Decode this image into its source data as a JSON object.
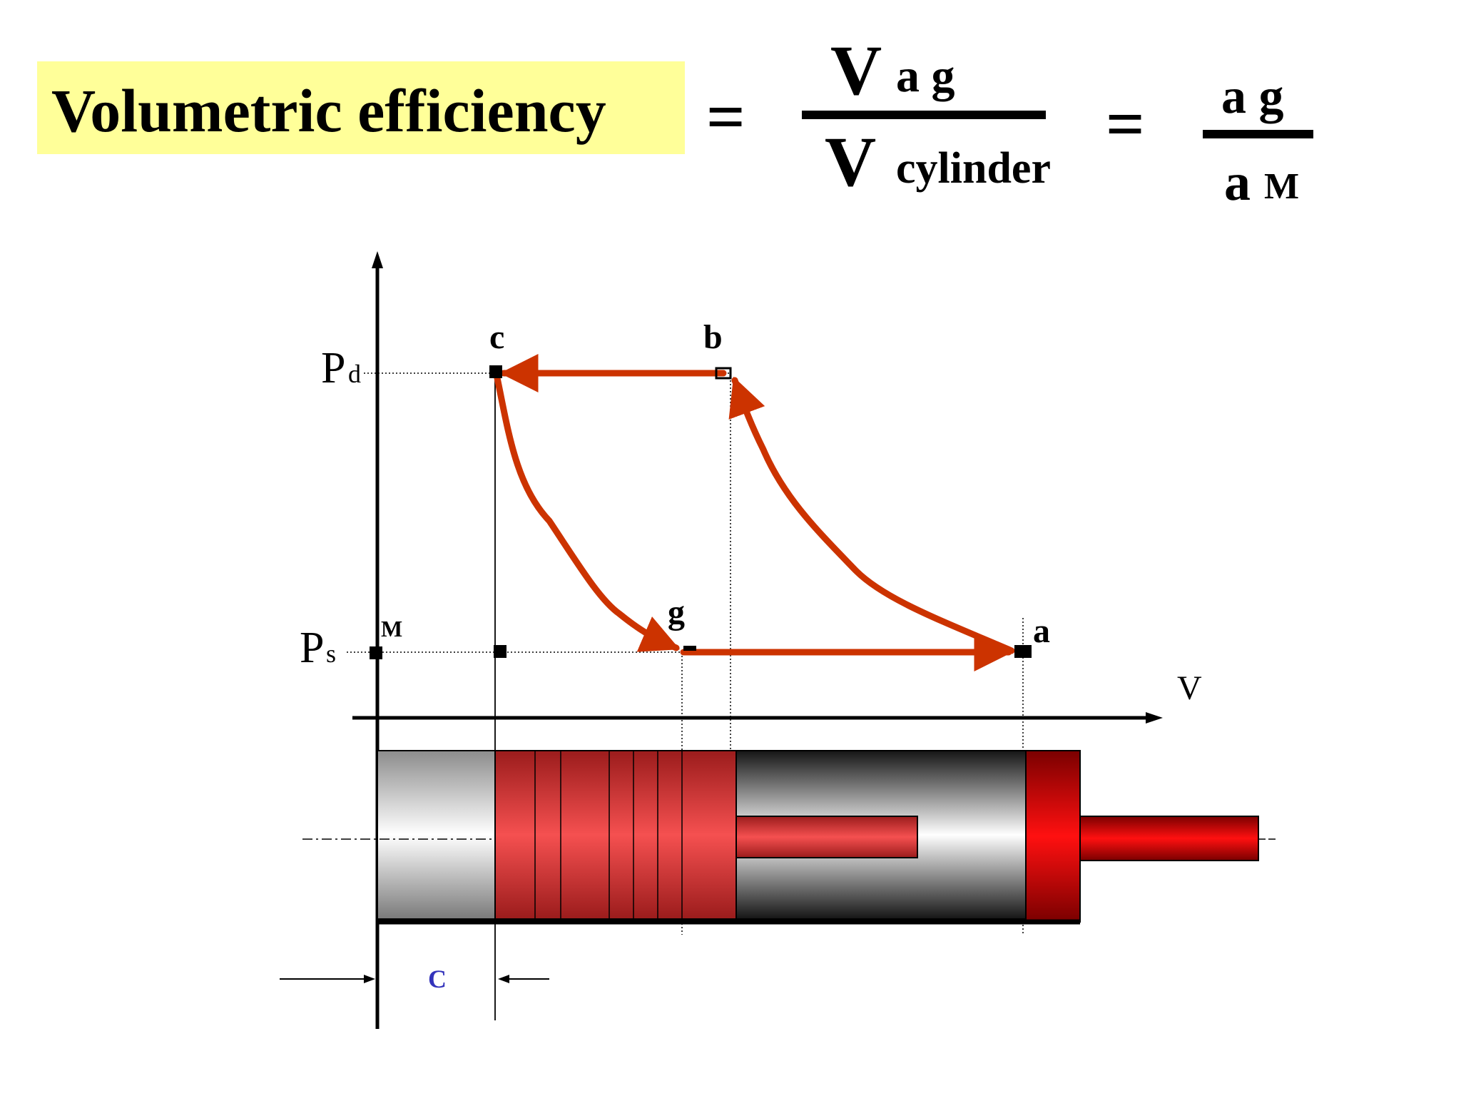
{
  "header": {
    "title": "Volumetric efficiency",
    "equals": "=",
    "frac1": {
      "num_big": "V",
      "num_sub": "a g",
      "den_big": "V",
      "den_sub": "cylinder"
    },
    "frac2": {
      "num": "a g",
      "den_a": "a",
      "den_m": "M"
    }
  },
  "diagram": {
    "point_labels": {
      "c": "c",
      "b": "b",
      "g": "g",
      "a": "a",
      "m": "M"
    },
    "pressure_labels": {
      "pd_main": "P",
      "pd_sub": "d",
      "ps_main": "P",
      "ps_sub": "s"
    },
    "axis_labels": {
      "v": "V"
    },
    "clearance_label": "C"
  },
  "colors": {
    "highlight": "#ffff99",
    "cycle": "#cc3300",
    "piston": "#e03a3a",
    "cap": "#cc0000",
    "ink": "#000000",
    "clearance": "#3333bb"
  }
}
